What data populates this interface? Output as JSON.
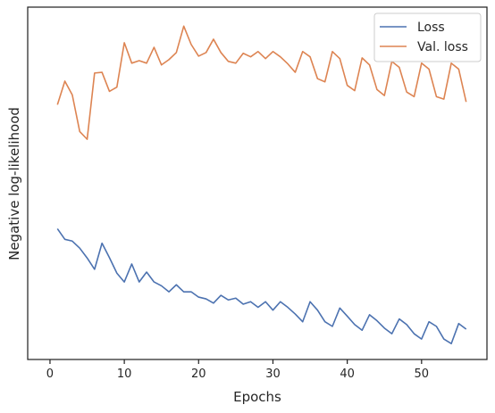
{
  "chart_data": {
    "type": "line",
    "title": "",
    "xlabel": "Epochs",
    "ylabel": "Negative log-likelihood",
    "xlim": [
      -3,
      58.8
    ],
    "ylim": [
      0,
      100
    ],
    "xticks": [
      0,
      10,
      20,
      30,
      40,
      50
    ],
    "yticks_labeled": false,
    "grid": false,
    "legend_position": "top-right",
    "x": [
      1,
      2,
      3,
      4,
      5,
      6,
      7,
      8,
      9,
      10,
      11,
      12,
      13,
      14,
      15,
      16,
      17,
      18,
      19,
      20,
      21,
      22,
      23,
      24,
      25,
      26,
      27,
      28,
      29,
      30,
      31,
      32,
      33,
      34,
      35,
      36,
      37,
      38,
      39,
      40,
      41,
      42,
      43,
      44,
      45,
      46,
      47,
      48,
      49,
      50,
      51,
      52,
      53,
      54,
      55,
      56
    ],
    "series": [
      {
        "name": "Loss",
        "color": "#4c72b0",
        "values": [
          37.1,
          34.1,
          33.6,
          31.6,
          28.8,
          25.6,
          33.0,
          28.9,
          24.5,
          22.0,
          27.1,
          22.0,
          24.8,
          22.0,
          20.9,
          19.2,
          21.2,
          19.2,
          19.2,
          17.7,
          17.2,
          16.0,
          18.2,
          16.9,
          17.4,
          15.7,
          16.4,
          14.8,
          16.4,
          14.0,
          16.4,
          14.8,
          12.9,
          10.7,
          16.4,
          14.0,
          10.7,
          9.4,
          14.6,
          12.3,
          9.9,
          8.3,
          12.7,
          11.0,
          8.9,
          7.3,
          11.5,
          9.9,
          7.3,
          5.8,
          10.7,
          9.4,
          5.8,
          4.5,
          10.2,
          8.6
        ]
      },
      {
        "name": "Val. loss",
        "color": "#dd8452",
        "values": [
          72.3,
          79.0,
          75.1,
          64.7,
          62.5,
          81.3,
          81.5,
          76.1,
          77.3,
          89.9,
          84.1,
          84.8,
          84.1,
          88.6,
          83.6,
          85.1,
          87.1,
          94.6,
          89.4,
          86.1,
          87.1,
          90.9,
          87.1,
          84.6,
          84.1,
          86.9,
          85.9,
          87.4,
          85.4,
          87.4,
          85.9,
          83.9,
          81.5,
          87.4,
          85.9,
          79.7,
          78.8,
          87.4,
          85.4,
          77.8,
          76.3,
          85.6,
          83.6,
          76.6,
          74.9,
          84.6,
          82.9,
          75.9,
          74.6,
          84.1,
          82.4,
          74.6,
          73.9,
          84.1,
          82.4,
          73.1
        ]
      }
    ]
  }
}
